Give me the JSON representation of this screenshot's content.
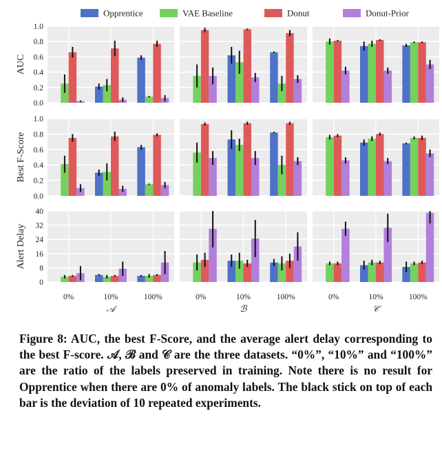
{
  "colors": {
    "Opprentice": "#4f72c9",
    "VAE Baseline": "#74d15d",
    "Donut": "#de5a5a",
    "Donut-Prior": "#b27fdb",
    "panel_bg": "#ececec",
    "grid": "#ffffff",
    "error_bar": "#111111"
  },
  "legend": [
    "Opprentice",
    "VAE Baseline",
    "Donut",
    "Donut-Prior"
  ],
  "caption": "Figure 8: AUC, the best F-Score, and the average alert delay corresponding to the best F-score. 𝒜, ℬ and 𝒞 are the three datasets. “0%”, “10%” and “100%” are the ratio of the labels preserved in training. Note there is no result for Opprentice when there are 0% of anomaly labels. The black stick on top of each bar is the deviation of 10 repeated experiments.",
  "chart_data": {
    "type": "bar",
    "grouped": true,
    "error_bars": true,
    "grid": true,
    "legend_position": "top",
    "datasets": [
      "𝒜",
      "ℬ",
      "𝒞"
    ],
    "categories": [
      "0%",
      "10%",
      "100%"
    ],
    "series_names": [
      "Opprentice",
      "VAE Baseline",
      "Donut",
      "Donut-Prior"
    ],
    "metrics": [
      {
        "ylabel": "AUC",
        "ylim": [
          0,
          1.0
        ],
        "yticks": [
          "0.0",
          "0.2",
          "0.4",
          "0.6",
          "0.8",
          "1.0"
        ],
        "ytick_values": [
          0,
          0.2,
          0.4,
          0.6,
          0.8,
          1.0
        ],
        "values": [
          [
            [
              null,
              0.25,
              0.66,
              0.02
            ],
            [
              0.21,
              0.23,
              0.71,
              0.04
            ],
            [
              0.59,
              0.08,
              0.77,
              0.06
            ]
          ],
          [
            [
              null,
              0.35,
              0.95,
              0.35
            ],
            [
              0.62,
              0.53,
              0.96,
              0.33
            ],
            [
              0.66,
              0.25,
              0.91,
              0.31
            ]
          ],
          [
            [
              null,
              0.8,
              0.81,
              0.42
            ],
            [
              0.74,
              0.77,
              0.82,
              0.42
            ],
            [
              0.75,
              0.79,
              0.79,
              0.5
            ]
          ]
        ],
        "errors": [
          [
            [
              null,
              0.12,
              0.07,
              0.01
            ],
            [
              0.04,
              0.08,
              0.1,
              0.03
            ],
            [
              0.03,
              0.01,
              0.04,
              0.04
            ]
          ],
          [
            [
              null,
              0.15,
              0.03,
              0.11
            ],
            [
              0.11,
              0.15,
              0.01,
              0.06
            ],
            [
              0.01,
              0.1,
              0.04,
              0.05
            ]
          ],
          [
            [
              null,
              0.04,
              0.01,
              0.05
            ],
            [
              0.06,
              0.04,
              0.01,
              0.04
            ],
            [
              0.02,
              0.01,
              0.01,
              0.06
            ]
          ]
        ]
      },
      {
        "ylabel": "Best F-Score",
        "ylim": [
          0,
          1.0
        ],
        "yticks": [
          "0.0",
          "0.2",
          "0.4",
          "0.6",
          "0.8",
          "1.0"
        ],
        "ytick_values": [
          0,
          0.2,
          0.4,
          0.6,
          0.8,
          1.0
        ],
        "values": [
          [
            [
              null,
              0.41,
              0.75,
              0.1
            ],
            [
              0.3,
              0.31,
              0.77,
              0.09
            ],
            [
              0.63,
              0.15,
              0.79,
              0.14
            ]
          ],
          [
            [
              null,
              0.56,
              0.93,
              0.49
            ],
            [
              0.73,
              0.66,
              0.94,
              0.49
            ],
            [
              0.82,
              0.4,
              0.94,
              0.45
            ]
          ],
          [
            [
              null,
              0.76,
              0.78,
              0.46
            ],
            [
              0.69,
              0.74,
              0.8,
              0.45
            ],
            [
              0.68,
              0.75,
              0.75,
              0.55
            ]
          ]
        ],
        "errors": [
          [
            [
              null,
              0.11,
              0.05,
              0.05
            ],
            [
              0.04,
              0.11,
              0.06,
              0.04
            ],
            [
              0.03,
              0.01,
              0.02,
              0.04
            ]
          ],
          [
            [
              null,
              0.13,
              0.02,
              0.09
            ],
            [
              0.12,
              0.08,
              0.02,
              0.09
            ],
            [
              0.01,
              0.12,
              0.02,
              0.05
            ]
          ],
          [
            [
              null,
              0.03,
              0.02,
              0.04
            ],
            [
              0.04,
              0.03,
              0.02,
              0.04
            ],
            [
              0.01,
              0.02,
              0.03,
              0.05
            ]
          ]
        ]
      },
      {
        "ylabel": "Alert Delay",
        "ylim": [
          0,
          40
        ],
        "yticks": [
          "0",
          "8",
          "16",
          "24",
          "32",
          "40"
        ],
        "ytick_values": [
          0,
          8,
          16,
          24,
          32,
          40
        ],
        "values": [
          [
            [
              null,
              3.0,
              3.5,
              5.0
            ],
            [
              4.0,
              3.0,
              3.5,
              7.5
            ],
            [
              3.5,
              3.5,
              4.0,
              11.0
            ]
          ],
          [
            [
              null,
              11.0,
              12.5,
              30.0
            ],
            [
              12.0,
              12.0,
              10.5,
              24.5
            ],
            [
              11.0,
              10.5,
              12.0,
              20.0
            ]
          ],
          [
            [
              null,
              10.5,
              10.5,
              30.0
            ],
            [
              9.5,
              11.0,
              11.0,
              30.5
            ],
            [
              8.5,
              10.5,
              11.0,
              39.0
            ]
          ]
        ],
        "errors": [
          [
            [
              null,
              1.0,
              0.5,
              4.0
            ],
            [
              0.5,
              1.0,
              0.5,
              4.0
            ],
            [
              0.5,
              1.0,
              0.5,
              6.5
            ]
          ],
          [
            [
              null,
              4.5,
              4.0,
              10.5
            ],
            [
              3.5,
              4.5,
              2.0,
              10.5
            ],
            [
              2.0,
              4.0,
              4.0,
              8.0
            ]
          ],
          [
            [
              null,
              1.0,
              1.0,
              4.0
            ],
            [
              2.5,
              1.5,
              1.0,
              8.0
            ],
            [
              3.0,
              1.0,
              1.0,
              6.0
            ]
          ]
        ]
      }
    ]
  }
}
